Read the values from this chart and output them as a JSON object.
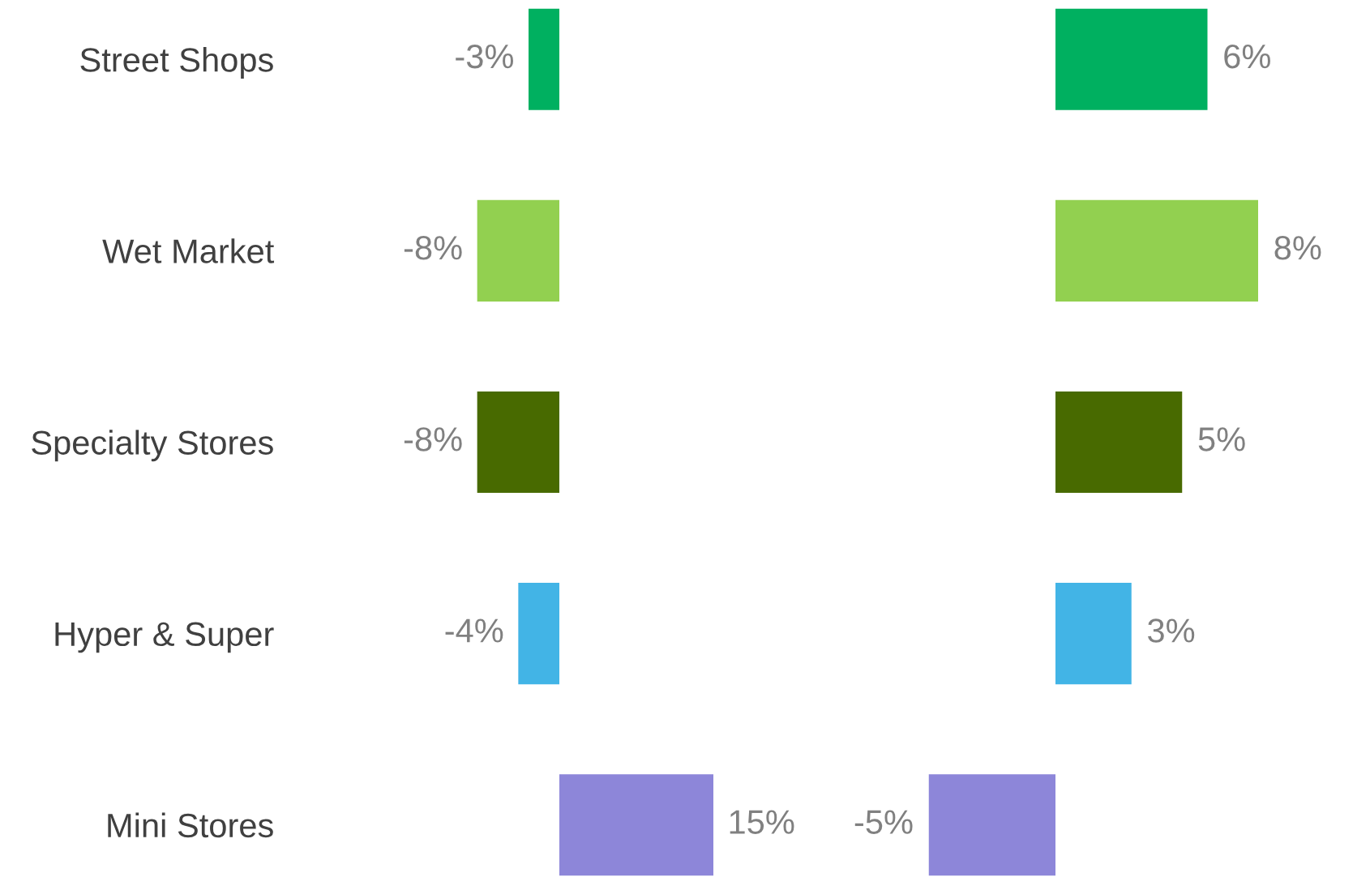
{
  "chart_data": [
    {
      "type": "bar",
      "orientation": "horizontal",
      "categories": [
        "Street Shops",
        "Wet Market",
        "Specialty Stores",
        "Hyper & Super",
        "Mini Stores"
      ],
      "values": [
        -3,
        -8,
        -8,
        -4,
        15
      ],
      "colors": [
        "#00b060",
        "#92d050",
        "#486a00",
        "#42b4e6",
        "#8d86d9"
      ],
      "value_labels": [
        "-3%",
        "-8%",
        "-8%",
        "-4%",
        "15%"
      ],
      "tick_labels": "y",
      "grid": false,
      "legend": false
    },
    {
      "type": "bar",
      "orientation": "horizontal",
      "categories": [
        null,
        null,
        null,
        null,
        null
      ],
      "values": [
        6,
        8,
        5,
        3,
        -5
      ],
      "colors": [
        "#00b060",
        "#92d050",
        "#486a00",
        "#42b4e6",
        "#8d86d9"
      ],
      "value_labels": [
        "6%",
        "8%",
        "5%",
        "3%",
        "-5%"
      ],
      "tick_labels": false,
      "grid": false,
      "legend": false
    }
  ]
}
